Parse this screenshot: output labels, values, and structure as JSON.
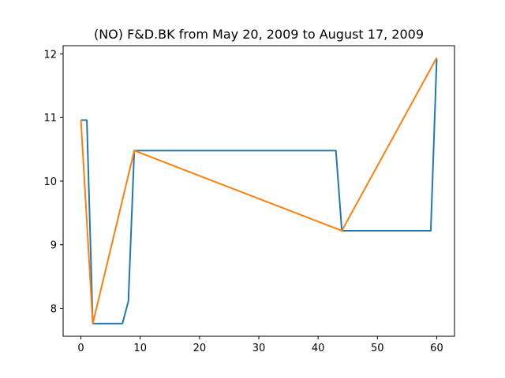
{
  "chart_data": {
    "type": "line",
    "title": "(NO) F&D.BK from May 20, 2009 to August 17, 2009",
    "xlabel": "",
    "ylabel": "",
    "xlim": [
      -3,
      63
    ],
    "ylim": [
      7.56,
      12.13
    ],
    "grid": false,
    "x_ticks": [
      0,
      10,
      20,
      30,
      40,
      50,
      60
    ],
    "y_ticks": [
      8,
      9,
      10,
      11,
      12
    ],
    "series": [
      {
        "color": "#1f77b4",
        "x": [
          0,
          1,
          2,
          7,
          8,
          9,
          43,
          44,
          59,
          60
        ],
        "y": [
          10.96,
          10.96,
          7.76,
          7.76,
          8.11,
          10.48,
          10.48,
          9.22,
          9.22,
          11.92
        ]
      },
      {
        "color": "#ff7f0e",
        "x": [
          0,
          2,
          9,
          44,
          60
        ],
        "y": [
          10.96,
          7.76,
          10.48,
          9.22,
          11.94
        ]
      }
    ]
  }
}
